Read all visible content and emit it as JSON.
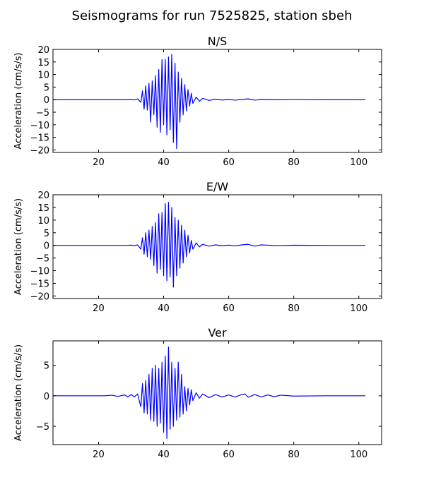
{
  "figure_title": "Seismograms for run 7525825, station sbeh",
  "chart_data": [
    {
      "type": "line",
      "title": "N/S",
      "xlabel": "",
      "ylabel": "Acceleration (cm/s/s)",
      "xlim": [
        6,
        107
      ],
      "ylim": [
        -21,
        20
      ],
      "xticks": [
        20,
        40,
        60,
        80,
        100
      ],
      "yticks": [
        20,
        15,
        10,
        5,
        0,
        -5,
        -10,
        -15,
        -20
      ],
      "color": "#0000ff",
      "grid": false,
      "series": [
        {
          "x": [
            6,
            29,
            30,
            31,
            32,
            33,
            33.5,
            34,
            34.5,
            35,
            35.5,
            36,
            36.5,
            37,
            37.5,
            38,
            38.5,
            39,
            39.5,
            40,
            40.5,
            41,
            41.5,
            42,
            42.5,
            43,
            43.5,
            44,
            44.5,
            45,
            45.5,
            46,
            46.5,
            47,
            47.5,
            48,
            48.5,
            49,
            50,
            51,
            52,
            54,
            56,
            58,
            60,
            62,
            64,
            66,
            68,
            70,
            75,
            80,
            90,
            100,
            102
          ],
          "y": [
            0,
            0,
            0.1,
            -0.1,
            0.3,
            -1.0,
            3.5,
            -3.8,
            5.5,
            -4.2,
            6.5,
            -9.0,
            7.5,
            -6.0,
            9.5,
            -11.0,
            12.0,
            -13.0,
            16.0,
            -10.0,
            16.0,
            -14.0,
            17.0,
            -12.0,
            18.0,
            -17.0,
            14.5,
            -19.5,
            11.0,
            -9.0,
            8.5,
            -6.0,
            6.0,
            -4.5,
            4.0,
            -2.5,
            2.5,
            -1.5,
            1.0,
            -0.6,
            0.5,
            -0.3,
            0.2,
            -0.15,
            0.1,
            -0.2,
            0.1,
            0.3,
            -0.2,
            0.1,
            -0.05,
            0.05,
            0,
            0,
            0
          ]
        }
      ]
    },
    {
      "type": "line",
      "title": "E/W",
      "xlabel": "",
      "ylabel": "Acceleration (cm/s/s)",
      "xlim": [
        6,
        107
      ],
      "ylim": [
        -21,
        20
      ],
      "xticks": [
        20,
        40,
        60,
        80,
        100
      ],
      "yticks": [
        20,
        15,
        10,
        5,
        0,
        -5,
        -10,
        -15,
        -20
      ],
      "color": "#0000ff",
      "grid": false,
      "series": [
        {
          "x": [
            6,
            29,
            30,
            31,
            32,
            33,
            33.5,
            34,
            34.5,
            35,
            35.5,
            36,
            36.5,
            37,
            37.5,
            38,
            38.5,
            39,
            39.5,
            40,
            40.5,
            41,
            41.5,
            42,
            42.5,
            43,
            43.5,
            44,
            44.5,
            45,
            45.5,
            46,
            46.5,
            47,
            47.5,
            48,
            48.5,
            49,
            50,
            51,
            52,
            54,
            56,
            58,
            60,
            62,
            64,
            66,
            68,
            70,
            75,
            80,
            90,
            100,
            102
          ],
          "y": [
            0,
            0,
            0.1,
            -0.1,
            0.2,
            -1.5,
            3.0,
            -3.5,
            5.0,
            -4.5,
            6.0,
            -5.5,
            7.5,
            -8.0,
            9.0,
            -11.0,
            12.5,
            -9.5,
            13.0,
            -12.0,
            16.5,
            -14.0,
            17.0,
            -12.5,
            15.0,
            -16.5,
            11.0,
            -12.0,
            10.0,
            -9.0,
            8.0,
            -7.0,
            6.0,
            -4.5,
            4.0,
            -3.0,
            2.0,
            -1.5,
            1.0,
            -0.6,
            0.4,
            -0.3,
            0.2,
            -0.15,
            0.1,
            -0.2,
            0.2,
            0.4,
            -0.3,
            0.2,
            -0.1,
            0.05,
            0,
            0,
            0
          ]
        }
      ]
    },
    {
      "type": "line",
      "title": "Ver",
      "xlabel": "",
      "ylabel": "Acceleration (cm/s/s)",
      "xlim": [
        6,
        107
      ],
      "ylim": [
        -8,
        9
      ],
      "xticks": [
        20,
        40,
        60,
        80,
        100
      ],
      "yticks": [
        5,
        0,
        -5
      ],
      "color": "#0000ff",
      "grid": false,
      "series": [
        {
          "x": [
            6,
            22,
            24,
            26,
            28,
            29,
            30,
            31,
            32,
            33,
            33.5,
            34,
            34.5,
            35,
            35.5,
            36,
            36.5,
            37,
            37.5,
            38,
            38.5,
            39,
            39.5,
            40,
            40.5,
            41,
            41.5,
            42,
            42.5,
            43,
            43.5,
            44,
            44.5,
            45,
            45.5,
            46,
            46.5,
            47,
            47.5,
            48,
            48.5,
            49,
            50,
            51,
            52,
            54,
            56,
            58,
            60,
            62,
            64,
            65,
            66,
            68,
            70,
            72,
            74,
            76,
            80,
            90,
            100,
            102
          ],
          "y": [
            0,
            0,
            0.1,
            -0.1,
            0.15,
            -0.2,
            0.2,
            -0.2,
            0.3,
            -1.8,
            2.0,
            -2.8,
            2.5,
            -3.0,
            3.5,
            -4.0,
            4.5,
            -4.2,
            5.0,
            -5.0,
            4.5,
            -4.5,
            5.5,
            -6.0,
            6.5,
            -7.0,
            8.0,
            -5.5,
            5.5,
            -5.0,
            4.5,
            -4.0,
            5.5,
            -3.5,
            3.5,
            -3.0,
            1.5,
            -2.5,
            1.2,
            -1.5,
            1.0,
            -0.8,
            0.5,
            -0.4,
            0.3,
            -0.3,
            0.2,
            -0.2,
            0.15,
            -0.2,
            0.2,
            0.3,
            -0.25,
            0.2,
            -0.2,
            0.15,
            -0.15,
            0.1,
            -0.05,
            0,
            0,
            0
          ]
        }
      ]
    }
  ]
}
